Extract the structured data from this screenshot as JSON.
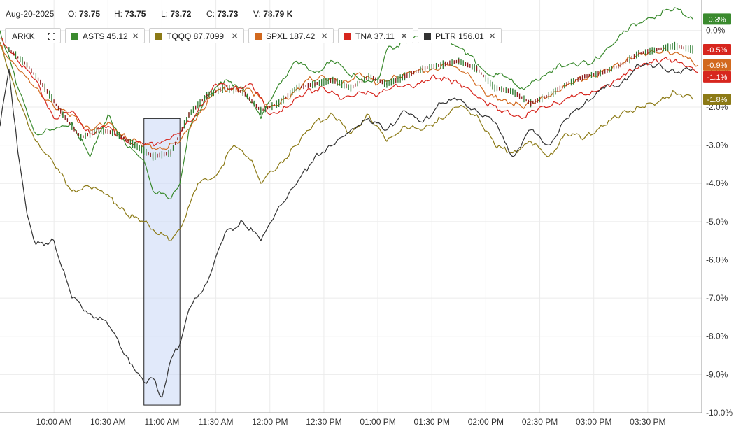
{
  "header": {
    "date": "Aug-20-2025",
    "open_label": "O:",
    "open": "73.75",
    "high_label": "H:",
    "high": "73.75",
    "low_label": "L:",
    "low": "73.72",
    "close_label": "C:",
    "close": "73.73",
    "volume_label": "V:",
    "volume": "78.79 K"
  },
  "legend": {
    "ticker": "ARKK",
    "fullscreen_icon": "fullscreen-icon",
    "close_icon": "close-icon",
    "chips": [
      {
        "label": "ASTS 45.12",
        "color": "#3a8a2e"
      },
      {
        "label": "TQQQ 87.7099",
        "color": "#8c7a16"
      },
      {
        "label": "SPXL 187.42",
        "color": "#d2691e"
      },
      {
        "label": "TNA 37.11",
        "color": "#d7261e"
      },
      {
        "label": "PLTR 156.01",
        "color": "#333333"
      }
    ]
  },
  "chart_data": {
    "type": "line",
    "ylim": [
      -10.0,
      0.8
    ],
    "xlim": [
      "09:30",
      "16:00"
    ],
    "y_ticks": [
      "0.0%",
      "-1.0%",
      "-2.0%",
      "-3.0%",
      "-4.0%",
      "-5.0%",
      "-6.0%",
      "-7.0%",
      "-8.0%",
      "-9.0%",
      "-10.0%"
    ],
    "y_tick_values": [
      0,
      -1,
      -2,
      -3,
      -4,
      -5,
      -6,
      -7,
      -8,
      -9,
      -10
    ],
    "x_ticks": [
      "10:00 AM",
      "10:30 AM",
      "11:00 AM",
      "11:30 AM",
      "12:00 PM",
      "12:30 PM",
      "01:00 PM",
      "01:30 PM",
      "02:00 PM",
      "02:30 PM",
      "03:00 PM",
      "03:30 PM"
    ],
    "x_tick_values": [
      "10:00",
      "10:30",
      "11:00",
      "11:30",
      "12:00",
      "12:30",
      "13:00",
      "13:30",
      "14:00",
      "14:30",
      "15:00",
      "15:30"
    ],
    "highlight": {
      "x0": "10:50",
      "x1": "11:10",
      "y0": -9.8,
      "y1": -2.3
    },
    "badges": [
      {
        "text": "0.3%",
        "value": 0.3,
        "color": "#3a8a2e"
      },
      {
        "text": "-0.5%",
        "value": -0.5,
        "color": "#d7261e"
      },
      {
        "text": "-1.1%",
        "value": -1.1,
        "color": "#d7261e"
      },
      {
        "text": "-0.9%",
        "value": -0.9,
        "color": "#d2691e"
      },
      {
        "text": "-1.8%",
        "value": -1.8,
        "color": "#8c7a16"
      }
    ],
    "candles": {
      "name": "ARKK",
      "points": [
        [
          "09:35",
          -0.5
        ],
        [
          "09:45",
          -0.9
        ],
        [
          "09:55",
          -1.5
        ],
        [
          "10:05",
          -2.2
        ],
        [
          "10:15",
          -2.8
        ],
        [
          "10:25",
          -2.6
        ],
        [
          "10:35",
          -2.7
        ],
        [
          "10:45",
          -3.0
        ],
        [
          "10:55",
          -3.3
        ],
        [
          "11:05",
          -3.2
        ],
        [
          "11:15",
          -2.2
        ],
        [
          "11:25",
          -1.7
        ],
        [
          "11:35",
          -1.5
        ],
        [
          "11:45",
          -1.6
        ],
        [
          "11:55",
          -2.1
        ],
        [
          "12:05",
          -1.9
        ],
        [
          "12:15",
          -1.5
        ],
        [
          "12:25",
          -1.4
        ],
        [
          "12:35",
          -1.3
        ],
        [
          "12:45",
          -1.5
        ],
        [
          "12:55",
          -1.2
        ],
        [
          "13:05",
          -1.4
        ],
        [
          "13:15",
          -1.2
        ],
        [
          "13:25",
          -1.0
        ],
        [
          "13:35",
          -0.9
        ],
        [
          "13:45",
          -0.8
        ],
        [
          "13:55",
          -1.0
        ],
        [
          "14:05",
          -1.5
        ],
        [
          "14:15",
          -1.6
        ],
        [
          "14:25",
          -1.9
        ],
        [
          "14:35",
          -1.7
        ],
        [
          "14:45",
          -1.4
        ],
        [
          "14:55",
          -1.2
        ],
        [
          "15:05",
          -1.1
        ],
        [
          "15:15",
          -0.9
        ],
        [
          "15:25",
          -0.6
        ],
        [
          "15:35",
          -0.5
        ],
        [
          "15:45",
          -0.4
        ],
        [
          "15:55",
          -0.5
        ]
      ]
    },
    "series": [
      {
        "name": "ASTS",
        "color": "#3a8a2e",
        "points": [
          [
            "09:30",
            0.0
          ],
          [
            "09:40",
            -1.5
          ],
          [
            "09:50",
            -2.7
          ],
          [
            "10:00",
            -2.6
          ],
          [
            "10:10",
            -2.4
          ],
          [
            "10:20",
            -3.3
          ],
          [
            "10:30",
            -2.2
          ],
          [
            "10:40",
            -3.0
          ],
          [
            "10:50",
            -3.4
          ],
          [
            "10:55",
            -4.2
          ],
          [
            "11:05",
            -4.4
          ],
          [
            "11:10",
            -4.0
          ],
          [
            "11:15",
            -2.6
          ],
          [
            "11:25",
            -1.7
          ],
          [
            "11:35",
            -1.3
          ],
          [
            "11:45",
            -1.5
          ],
          [
            "11:55",
            -2.3
          ],
          [
            "12:05",
            -1.4
          ],
          [
            "12:15",
            -0.8
          ],
          [
            "12:25",
            -1.1
          ],
          [
            "12:35",
            -0.8
          ],
          [
            "12:50",
            -1.3
          ],
          [
            "13:00",
            -1.3
          ],
          [
            "13:05",
            -0.5
          ],
          [
            "13:15",
            -0.3
          ],
          [
            "13:30",
            0.0
          ],
          [
            "13:40",
            -0.3
          ],
          [
            "13:50",
            -0.6
          ],
          [
            "14:00",
            -1.1
          ],
          [
            "14:10",
            -1.2
          ],
          [
            "14:20",
            -1.5
          ],
          [
            "14:30",
            -1.3
          ],
          [
            "14:40",
            -0.9
          ],
          [
            "14:50",
            -0.9
          ],
          [
            "15:00",
            -0.8
          ],
          [
            "15:10",
            -0.4
          ],
          [
            "15:20",
            0.1
          ],
          [
            "15:35",
            0.4
          ],
          [
            "15:45",
            0.6
          ],
          [
            "15:55",
            0.3
          ]
        ]
      },
      {
        "name": "TQQQ",
        "color": "#8c7a16",
        "points": [
          [
            "09:30",
            -0.3
          ],
          [
            "09:40",
            -1.8
          ],
          [
            "09:50",
            -2.9
          ],
          [
            "10:00",
            -3.5
          ],
          [
            "10:10",
            -4.2
          ],
          [
            "10:20",
            -4.1
          ],
          [
            "10:30",
            -4.3
          ],
          [
            "10:40",
            -4.8
          ],
          [
            "10:50",
            -5.0
          ],
          [
            "10:55",
            -5.2
          ],
          [
            "11:05",
            -5.5
          ],
          [
            "11:10",
            -5.2
          ],
          [
            "11:20",
            -4.0
          ],
          [
            "11:30",
            -3.8
          ],
          [
            "11:40",
            -3.0
          ],
          [
            "11:50",
            -3.4
          ],
          [
            "11:55",
            -4.0
          ],
          [
            "12:05",
            -3.5
          ],
          [
            "12:15",
            -3.0
          ],
          [
            "12:25",
            -2.4
          ],
          [
            "12:35",
            -2.2
          ],
          [
            "12:45",
            -2.7
          ],
          [
            "12:55",
            -2.2
          ],
          [
            "13:05",
            -2.9
          ],
          [
            "13:15",
            -2.5
          ],
          [
            "13:25",
            -2.6
          ],
          [
            "13:35",
            -2.3
          ],
          [
            "13:45",
            -2.0
          ],
          [
            "13:55",
            -2.2
          ],
          [
            "14:05",
            -3.0
          ],
          [
            "14:15",
            -3.2
          ],
          [
            "14:25",
            -2.9
          ],
          [
            "14:35",
            -3.3
          ],
          [
            "14:45",
            -2.7
          ],
          [
            "14:55",
            -2.8
          ],
          [
            "15:05",
            -2.5
          ],
          [
            "15:15",
            -2.2
          ],
          [
            "15:25",
            -2.0
          ],
          [
            "15:35",
            -1.9
          ],
          [
            "15:45",
            -1.6
          ],
          [
            "15:55",
            -1.8
          ]
        ]
      },
      {
        "name": "SPXL",
        "color": "#d2691e",
        "points": [
          [
            "09:30",
            -0.4
          ],
          [
            "09:40",
            -1.0
          ],
          [
            "09:50",
            -1.5
          ],
          [
            "10:00",
            -2.0
          ],
          [
            "10:10",
            -2.2
          ],
          [
            "10:20",
            -2.6
          ],
          [
            "10:30",
            -2.4
          ],
          [
            "10:40",
            -2.8
          ],
          [
            "10:50",
            -3.0
          ],
          [
            "11:00",
            -3.1
          ],
          [
            "11:10",
            -2.9
          ],
          [
            "11:20",
            -2.2
          ],
          [
            "11:30",
            -1.6
          ],
          [
            "11:40",
            -1.5
          ],
          [
            "11:50",
            -1.6
          ],
          [
            "12:00",
            -2.0
          ],
          [
            "12:10",
            -1.8
          ],
          [
            "12:20",
            -1.3
          ],
          [
            "12:30",
            -1.2
          ],
          [
            "12:40",
            -1.4
          ],
          [
            "12:50",
            -1.1
          ],
          [
            "13:00",
            -1.4
          ],
          [
            "13:10",
            -1.2
          ],
          [
            "13:20",
            -1.1
          ],
          [
            "13:30",
            -1.0
          ],
          [
            "13:40",
            -0.9
          ],
          [
            "13:50",
            -1.1
          ],
          [
            "14:00",
            -1.7
          ],
          [
            "14:10",
            -1.8
          ],
          [
            "14:20",
            -2.0
          ],
          [
            "14:30",
            -1.8
          ],
          [
            "14:40",
            -1.6
          ],
          [
            "14:50",
            -1.3
          ],
          [
            "15:00",
            -1.2
          ],
          [
            "15:10",
            -1.0
          ],
          [
            "15:20",
            -0.7
          ],
          [
            "15:30",
            -0.6
          ],
          [
            "15:40",
            -0.5
          ],
          [
            "15:50",
            -0.7
          ],
          [
            "15:58",
            -0.9
          ]
        ]
      },
      {
        "name": "TNA",
        "color": "#d7261e",
        "points": [
          [
            "09:30",
            -0.2
          ],
          [
            "09:40",
            -0.8
          ],
          [
            "09:50",
            -1.3
          ],
          [
            "10:00",
            -2.3
          ],
          [
            "10:10",
            -2.1
          ],
          [
            "10:20",
            -2.7
          ],
          [
            "10:30",
            -2.5
          ],
          [
            "10:40",
            -2.9
          ],
          [
            "10:50",
            -3.0
          ],
          [
            "11:00",
            -2.9
          ],
          [
            "11:10",
            -2.7
          ],
          [
            "11:20",
            -2.1
          ],
          [
            "11:30",
            -1.4
          ],
          [
            "11:40",
            -1.5
          ],
          [
            "11:50",
            -1.4
          ],
          [
            "12:00",
            -2.2
          ],
          [
            "12:10",
            -2.0
          ],
          [
            "12:20",
            -1.6
          ],
          [
            "12:30",
            -1.5
          ],
          [
            "12:40",
            -1.8
          ],
          [
            "12:50",
            -1.6
          ],
          [
            "13:00",
            -1.7
          ],
          [
            "13:10",
            -1.4
          ],
          [
            "13:20",
            -1.5
          ],
          [
            "13:30",
            -1.2
          ],
          [
            "13:40",
            -1.3
          ],
          [
            "13:50",
            -1.5
          ],
          [
            "14:00",
            -1.9
          ],
          [
            "14:10",
            -2.1
          ],
          [
            "14:20",
            -2.3
          ],
          [
            "14:30",
            -2.0
          ],
          [
            "14:40",
            -1.9
          ],
          [
            "14:50",
            -1.7
          ],
          [
            "15:00",
            -1.6
          ],
          [
            "15:10",
            -1.4
          ],
          [
            "15:20",
            -1.0
          ],
          [
            "15:30",
            -0.9
          ],
          [
            "15:40",
            -0.7
          ],
          [
            "15:50",
            -0.9
          ],
          [
            "15:58",
            -1.1
          ]
        ]
      },
      {
        "name": "PLTR",
        "color": "#333333",
        "points": [
          [
            "09:30",
            -2.5
          ],
          [
            "09:35",
            -1.0
          ],
          [
            "09:40",
            -3.2
          ],
          [
            "09:45",
            -4.8
          ],
          [
            "09:50",
            -5.6
          ],
          [
            "10:00",
            -5.5
          ],
          [
            "10:10",
            -7.0
          ],
          [
            "10:20",
            -7.4
          ],
          [
            "10:30",
            -7.7
          ],
          [
            "10:40",
            -8.5
          ],
          [
            "10:50",
            -9.2
          ],
          [
            "10:55",
            -9.1
          ],
          [
            "11:00",
            -9.6
          ],
          [
            "11:05",
            -8.6
          ],
          [
            "11:10",
            -8.2
          ],
          [
            "11:15",
            -7.3
          ],
          [
            "11:25",
            -6.6
          ],
          [
            "11:35",
            -5.3
          ],
          [
            "11:45",
            -5.0
          ],
          [
            "11:55",
            -5.5
          ],
          [
            "12:05",
            -4.6
          ],
          [
            "12:15",
            -4.0
          ],
          [
            "12:25",
            -3.3
          ],
          [
            "12:35",
            -3.0
          ],
          [
            "12:45",
            -2.6
          ],
          [
            "12:55",
            -2.3
          ],
          [
            "13:05",
            -2.6
          ],
          [
            "13:15",
            -2.1
          ],
          [
            "13:25",
            -2.4
          ],
          [
            "13:35",
            -1.9
          ],
          [
            "13:45",
            -1.8
          ],
          [
            "13:55",
            -2.1
          ],
          [
            "14:05",
            -2.4
          ],
          [
            "14:15",
            -3.3
          ],
          [
            "14:25",
            -2.6
          ],
          [
            "14:35",
            -3.0
          ],
          [
            "14:45",
            -2.3
          ],
          [
            "14:55",
            -1.9
          ],
          [
            "15:05",
            -1.5
          ],
          [
            "15:15",
            -1.4
          ],
          [
            "15:25",
            -0.9
          ],
          [
            "15:35",
            -0.9
          ],
          [
            "15:45",
            -1.1
          ],
          [
            "15:55",
            -1.0
          ]
        ]
      }
    ]
  }
}
